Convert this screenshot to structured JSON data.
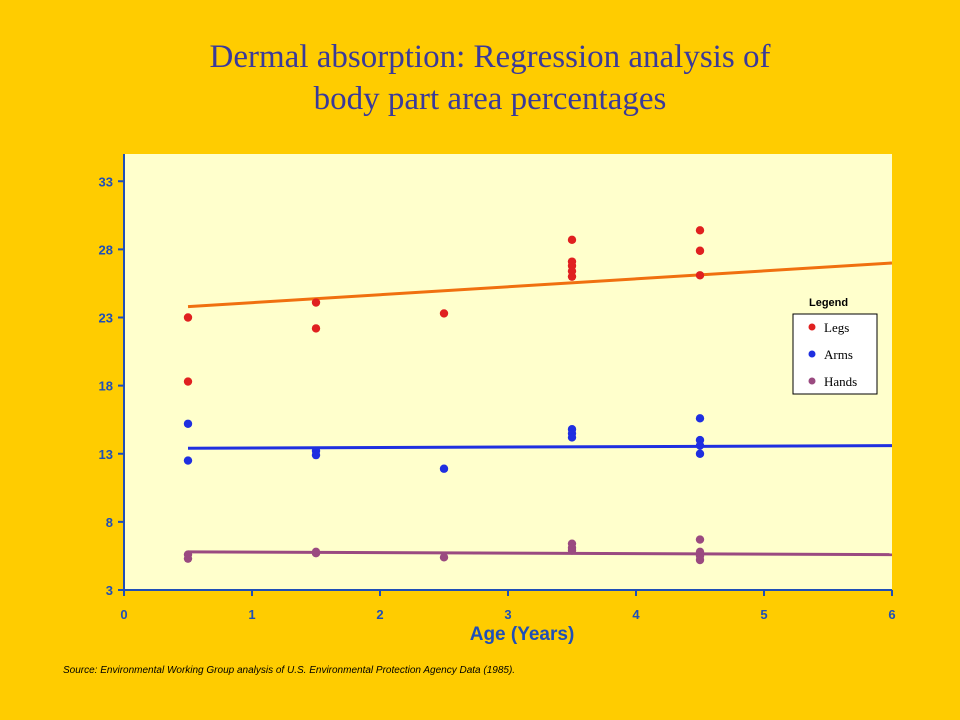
{
  "title_line1": "Dermal absorption: Regression analysis of",
  "title_line2": "body part area percentages",
  "source": "Source: Environmental Working Group analysis of U.S. Environmental Protection Agency Data (1985).",
  "colors": {
    "background": "#ffcc00",
    "plot_area": "#ffffcc",
    "axis": "#1f4fb8",
    "Legs": "#e02020",
    "Arms": "#1f2fe0",
    "Hands": "#9a4a80",
    "Legs_trend": "#f07010",
    "Arms_trend": "#1f2fe0",
    "Hands_trend": "#9a4a80"
  },
  "chart_data": {
    "type": "scatter",
    "xlabel": "Age (Years)",
    "ylabel": "",
    "xlim": [
      0,
      6
    ],
    "ylim": [
      3,
      35
    ],
    "xticks": [
      0,
      1,
      2,
      3,
      4,
      5,
      6
    ],
    "yticks": [
      3,
      8,
      13,
      18,
      23,
      28,
      33
    ],
    "grid": false,
    "legend": {
      "title": "Legend",
      "position": "right"
    },
    "series": [
      {
        "name": "Legs",
        "points": [
          [
            0.5,
            23.0
          ],
          [
            0.5,
            18.3
          ],
          [
            1.5,
            24.1
          ],
          [
            1.5,
            22.2
          ],
          [
            2.5,
            23.3
          ],
          [
            3.5,
            28.7
          ],
          [
            3.5,
            27.1
          ],
          [
            3.5,
            26.8
          ],
          [
            3.5,
            26.4
          ],
          [
            3.5,
            26.0
          ],
          [
            4.5,
            29.4
          ],
          [
            4.5,
            27.9
          ],
          [
            4.5,
            26.1
          ]
        ],
        "trend": [
          [
            0.5,
            23.8
          ],
          [
            6,
            27.0
          ]
        ]
      },
      {
        "name": "Arms",
        "points": [
          [
            0.5,
            15.2
          ],
          [
            0.5,
            12.5
          ],
          [
            1.5,
            13.2
          ],
          [
            1.5,
            12.9
          ],
          [
            2.5,
            11.9
          ],
          [
            3.5,
            14.8
          ],
          [
            3.5,
            14.5
          ],
          [
            3.5,
            14.2
          ],
          [
            4.5,
            15.6
          ],
          [
            4.5,
            14.0
          ],
          [
            4.5,
            13.6
          ],
          [
            4.5,
            13.0
          ]
        ],
        "trend": [
          [
            0.5,
            13.4
          ],
          [
            6,
            13.6
          ]
        ]
      },
      {
        "name": "Hands",
        "points": [
          [
            0.5,
            5.6
          ],
          [
            0.5,
            5.3
          ],
          [
            1.5,
            5.8
          ],
          [
            1.5,
            5.7
          ],
          [
            2.5,
            5.4
          ],
          [
            3.5,
            6.4
          ],
          [
            3.5,
            6.1
          ],
          [
            3.5,
            5.9
          ],
          [
            4.5,
            6.7
          ],
          [
            4.5,
            5.8
          ],
          [
            4.5,
            5.5
          ],
          [
            4.5,
            5.2
          ]
        ],
        "trend": [
          [
            0.5,
            5.8
          ],
          [
            6,
            5.6
          ]
        ]
      }
    ]
  }
}
